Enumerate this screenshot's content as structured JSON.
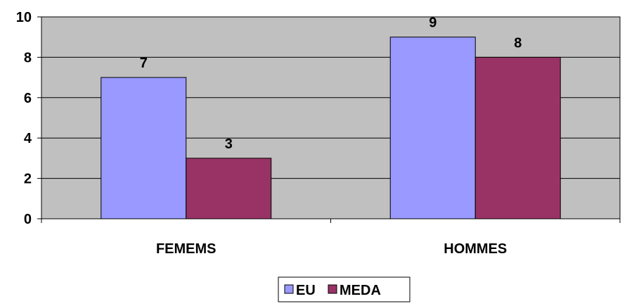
{
  "chart_data": {
    "type": "bar",
    "categories": [
      "FEMEMS",
      "HOMMES"
    ],
    "series": [
      {
        "name": "EU",
        "values": [
          7,
          9
        ],
        "color": "#9999ff"
      },
      {
        "name": "MEDA",
        "values": [
          3,
          8
        ],
        "color": "#993366"
      }
    ],
    "ylim": [
      0,
      10
    ],
    "yticks": [
      0,
      2,
      4,
      6,
      8,
      10
    ],
    "grid": true,
    "plot_background": "#c0c0c0",
    "legend_position": "bottom",
    "data_labels": true
  }
}
